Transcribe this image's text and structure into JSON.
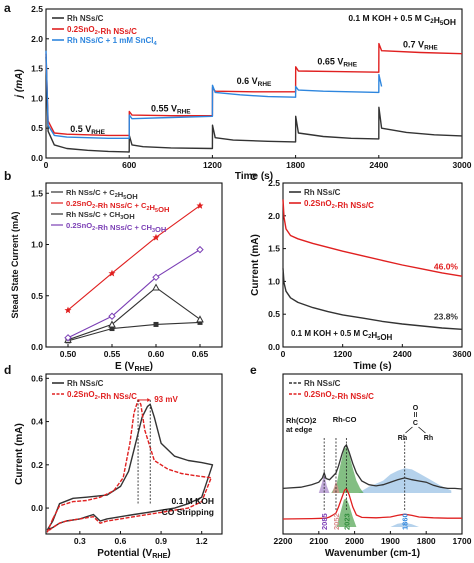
{
  "figure": {
    "panels": [
      "a",
      "b",
      "c",
      "d",
      "e"
    ]
  },
  "colors": {
    "black": "#333333",
    "red": "#e02020",
    "blue": "#2e86de",
    "purple": "#7b3fb5",
    "green": "#2e8b3a",
    "fill_blue": "#9cc3e6",
    "fill_green": "#5aa85a",
    "fill_purple": "#a98bc9",
    "pink": "#d98c8c"
  },
  "chart_data": [
    {
      "panel": "a",
      "type": "line",
      "xlabel": "Time (s)",
      "ylabel": "j (mA)",
      "xlim": [
        0,
        3000
      ],
      "ylim": [
        0,
        2.5
      ],
      "xticks": [
        0,
        600,
        1200,
        1800,
        2400,
        3000
      ],
      "yticks": [
        0.0,
        0.5,
        1.0,
        1.5,
        2.0,
        2.5
      ],
      "ytick_labels": [
        "0.0",
        "0.5",
        "1.0",
        "1.5",
        "2.0",
        "2.5"
      ],
      "annotation": "0.1 M KOH + 0.5 M C2H5OH",
      "potential_labels": [
        {
          "text": "0.5 VRHE",
          "x": 300,
          "y": 0.44
        },
        {
          "text": "0.55 VRHE",
          "x": 900,
          "y": 0.78
        },
        {
          "text": "0.6 VRHE",
          "x": 1500,
          "y": 1.24
        },
        {
          "text": "0.65 VRHE",
          "x": 2100,
          "y": 1.57
        },
        {
          "text": "0.7 VRHE",
          "x": 2700,
          "y": 1.85
        }
      ],
      "legend": [
        "Rh NSs/C",
        "0.2SnO2-Rh NSs/C",
        "Rh NSs/C + 1 mM SnCl4"
      ],
      "series": [
        {
          "name": "Rh NSs/C",
          "color_key": "black",
          "x": [
            0,
            15,
            60,
            150,
            300,
            450,
            600,
            601,
            620,
            700,
            900,
            1200,
            1201,
            1220,
            1350,
            1600,
            1800,
            1801,
            1820,
            2000,
            2200,
            2400,
            2401,
            2420,
            2600,
            2800,
            3000
          ],
          "y": [
            1.7,
            0.45,
            0.22,
            0.16,
            0.13,
            0.11,
            0.1,
            0.38,
            0.22,
            0.19,
            0.17,
            0.16,
            0.55,
            0.34,
            0.3,
            0.28,
            0.27,
            0.7,
            0.42,
            0.36,
            0.33,
            0.32,
            0.85,
            0.5,
            0.43,
            0.39,
            0.37
          ]
        },
        {
          "name": "0.2SnO2-Rh NSs/C",
          "color_key": "red",
          "x": [
            0,
            15,
            60,
            150,
            300,
            450,
            600,
            601,
            620,
            900,
            1200,
            1201,
            1220,
            1500,
            1800,
            1801,
            1820,
            2100,
            2400,
            2401,
            2420,
            2700,
            3000
          ],
          "y": [
            1.75,
            0.62,
            0.42,
            0.4,
            0.39,
            0.38,
            0.38,
            0.78,
            0.72,
            0.71,
            0.71,
            1.18,
            1.12,
            1.11,
            1.11,
            1.53,
            1.46,
            1.45,
            1.44,
            1.92,
            1.8,
            1.77,
            1.75
          ]
        },
        {
          "name": "Rh NSs/C + 1 mM SnCl4",
          "color_key": "blue",
          "x": [
            0,
            15,
            60,
            150,
            300,
            450,
            600,
            601,
            620,
            900,
            1200,
            1201,
            1220,
            1400,
            1600,
            1800,
            1801,
            1820,
            2000,
            2200,
            2400,
            2401,
            2420
          ],
          "y": [
            1.8,
            0.55,
            0.38,
            0.35,
            0.34,
            0.33,
            0.33,
            0.72,
            0.66,
            0.68,
            0.7,
            1.22,
            1.1,
            1.06,
            1.03,
            1.02,
            1.2,
            1.14,
            1.12,
            1.11,
            1.1,
            1.4,
            1.2
          ]
        }
      ]
    },
    {
      "panel": "b",
      "type": "line",
      "xlabel": "E (VRHE)",
      "ylabel": "Stead State Current (mA)",
      "xlim": [
        0.475,
        0.675
      ],
      "ylim": [
        0,
        1.6
      ],
      "xticks": [
        0.5,
        0.55,
        0.6,
        0.65
      ],
      "xtick_labels": [
        "0.50",
        "0.55",
        "0.60",
        "0.65"
      ],
      "yticks": [
        0.0,
        0.5,
        1.0,
        1.5
      ],
      "ytick_labels": [
        "0.0",
        "0.5",
        "1.0",
        "1.5"
      ],
      "legend": [
        "Rh NSs/C + C2H5OH",
        "0.2SnO2-Rh NSs/C + C2H5OH",
        "Rh NSs/C + CH3OH",
        "0.2SnO2-Rh NSs/C + CH3OH"
      ],
      "series": [
        {
          "name": "Rh NSs/C + C2H5OH",
          "color_key": "black",
          "marker": "square",
          "x": [
            0.5,
            0.55,
            0.6,
            0.65
          ],
          "y": [
            0.06,
            0.18,
            0.22,
            0.24
          ]
        },
        {
          "name": "0.2SnO2-Rh NSs/C + C2H5OH",
          "color_key": "red",
          "marker": "star",
          "x": [
            0.5,
            0.55,
            0.6,
            0.65
          ],
          "y": [
            0.36,
            0.72,
            1.07,
            1.38
          ]
        },
        {
          "name": "Rh NSs/C + CH3OH",
          "color_key": "black",
          "marker": "triangle",
          "x": [
            0.5,
            0.55,
            0.6,
            0.65
          ],
          "y": [
            0.07,
            0.22,
            0.58,
            0.27
          ]
        },
        {
          "name": "0.2SnO2-Rh NSs/C + CH3OH",
          "color_key": "purple",
          "marker": "diamond",
          "x": [
            0.5,
            0.55,
            0.6,
            0.65
          ],
          "y": [
            0.09,
            0.3,
            0.68,
            0.95
          ]
        }
      ]
    },
    {
      "panel": "c",
      "type": "line",
      "xlabel": "Time (s)",
      "ylabel": "Current (mA)",
      "xlim": [
        0,
        3600
      ],
      "ylim": [
        0,
        2.5
      ],
      "xticks": [
        0,
        1200,
        2400,
        3600
      ],
      "yticks": [
        0.0,
        0.5,
        1.0,
        1.5,
        2.0,
        2.5
      ],
      "ytick_labels": [
        "0.0",
        "0.5",
        "1.0",
        "1.5",
        "2.0",
        "2.5"
      ],
      "annotation": "0.1 M KOH + 0.5 M C2H5OH",
      "value_labels": [
        {
          "text": "46.0%",
          "x": 3300,
          "y": 1.12,
          "color_key": "red"
        },
        {
          "text": "23.8%",
          "x": 3300,
          "y": 0.37,
          "color_key": "black"
        }
      ],
      "legend": [
        "Rh NSs/C",
        "0.2SnO2-Rh NSs/C"
      ],
      "series": [
        {
          "name": "Rh NSs/C",
          "color_key": "black",
          "x": [
            0,
            20,
            60,
            150,
            300,
            600,
            900,
            1200,
            1600,
            2000,
            2400,
            2800,
            3200,
            3600
          ],
          "y": [
            1.2,
            0.98,
            0.85,
            0.75,
            0.68,
            0.6,
            0.54,
            0.49,
            0.44,
            0.39,
            0.35,
            0.32,
            0.29,
            0.27
          ]
        },
        {
          "name": "0.2SnO2-Rh NSs/C",
          "color_key": "red",
          "x": [
            0,
            20,
            60,
            150,
            300,
            600,
            900,
            1200,
            1600,
            2000,
            2400,
            2800,
            3200,
            3600
          ],
          "y": [
            2.25,
            1.98,
            1.8,
            1.7,
            1.65,
            1.58,
            1.52,
            1.46,
            1.39,
            1.32,
            1.25,
            1.19,
            1.13,
            1.08
          ]
        }
      ]
    },
    {
      "panel": "d",
      "type": "line",
      "xlabel": "Potential (VRHE)",
      "ylabel": "Current (mA)",
      "xlim": [
        0.05,
        1.35
      ],
      "ylim": [
        -0.12,
        0.62
      ],
      "xticks": [
        0.3,
        0.6,
        0.9,
        1.2
      ],
      "yticks": [
        0.0,
        0.2,
        0.4,
        0.6
      ],
      "ytick_labels": [
        "0.0",
        "0.2",
        "0.4",
        "0.6"
      ],
      "annotation_lines": [
        "0.1 M KOH",
        "CO Stripping"
      ],
      "peak_label": "93 mV",
      "peaks": [
        0.73,
        0.82
      ],
      "legend": [
        "Rh NSs/C",
        "0.2SnO2-Rh NSs/C"
      ],
      "series": [
        {
          "name": "Rh NSs/C",
          "color_key": "black",
          "x": [
            0.1,
            0.15,
            0.25,
            0.35,
            0.5,
            0.6,
            0.66,
            0.72,
            0.76,
            0.8,
            0.82,
            0.85,
            0.9,
            1.0,
            1.1,
            1.2,
            1.28,
            1.2,
            1.1,
            1.0,
            0.9,
            0.8,
            0.7,
            0.6,
            0.5,
            0.45,
            0.4,
            0.3,
            0.2,
            0.15,
            0.1,
            0.06,
            0.1
          ],
          "y": [
            -0.06,
            0.02,
            0.045,
            0.05,
            0.06,
            0.1,
            0.17,
            0.32,
            0.42,
            0.47,
            0.48,
            0.42,
            0.3,
            0.24,
            0.22,
            0.21,
            0.2,
            0.05,
            0.02,
            0.0,
            -0.01,
            -0.02,
            -0.03,
            -0.04,
            -0.05,
            -0.06,
            -0.03,
            -0.05,
            -0.06,
            -0.07,
            -0.09,
            -0.1,
            -0.06
          ]
        },
        {
          "name": "0.2SnO2-Rh NSs/C",
          "color_key": "red",
          "x": [
            0.1,
            0.15,
            0.25,
            0.35,
            0.45,
            0.55,
            0.62,
            0.67,
            0.7,
            0.73,
            0.75,
            0.78,
            0.85,
            0.95,
            1.05,
            1.15,
            1.27,
            1.2,
            1.1,
            1.0,
            0.9,
            0.8,
            0.7,
            0.6,
            0.5,
            0.45,
            0.4,
            0.3,
            0.2,
            0.15,
            0.1,
            0.06,
            0.1
          ],
          "y": [
            -0.05,
            0.01,
            0.03,
            0.035,
            0.05,
            0.08,
            0.14,
            0.3,
            0.44,
            0.5,
            0.48,
            0.36,
            0.22,
            0.18,
            0.16,
            0.15,
            0.14,
            0.03,
            0.0,
            -0.01,
            -0.02,
            -0.03,
            -0.04,
            -0.05,
            -0.06,
            -0.07,
            -0.04,
            -0.05,
            -0.06,
            -0.07,
            -0.09,
            -0.11,
            -0.05
          ]
        }
      ]
    },
    {
      "panel": "e",
      "type": "line",
      "xlabel": "Wavenumber (cm-1)",
      "ylabel": "",
      "xlim": [
        2200,
        1700
      ],
      "xticks": [
        2200,
        2100,
        2000,
        1900,
        1800,
        1700
      ],
      "peak_markers": [
        {
          "text": "2085",
          "x": 2085,
          "color_key": "purple"
        },
        {
          "text": "2052",
          "x": 2052,
          "color_key": "pink"
        },
        {
          "text": "2023",
          "x": 2023,
          "color_key": "green"
        },
        {
          "text": "1860",
          "x": 1860,
          "color_key": "blue"
        }
      ],
      "annotations": [
        "Rh(CO)2",
        "at edge",
        "Rh-CO"
      ],
      "bridge_labels": [
        "O",
        "C",
        "Rh",
        "Rh"
      ],
      "legend": [
        "Rh NSs/C",
        "0.2SnO2-Rh NSs/C"
      ],
      "series": [
        {
          "name": "Rh NSs/C",
          "color_key": "black",
          "x": [
            2200,
            2150,
            2120,
            2100,
            2090,
            2085,
            2080,
            2070,
            2060,
            2052,
            2045,
            2035,
            2028,
            2023,
            2015,
            2005,
            1995,
            1980,
            1960,
            1940,
            1920,
            1900,
            1880,
            1860,
            1840,
            1820,
            1800,
            1780,
            1760,
            1740,
            1720,
            1700
          ],
          "y": [
            0.3,
            0.32,
            0.36,
            0.4,
            0.47,
            0.55,
            0.46,
            0.44,
            0.5,
            0.55,
            0.66,
            0.86,
            0.97,
            1.0,
            0.88,
            0.7,
            0.55,
            0.42,
            0.36,
            0.34,
            0.36,
            0.4,
            0.44,
            0.47,
            0.44,
            0.42,
            0.4,
            0.35,
            0.32,
            0.3,
            0.3,
            0.29
          ]
        },
        {
          "name": "0.2SnO2-Rh NSs/C",
          "color_key": "red",
          "x": [
            2200,
            2120,
            2080,
            2070,
            2060,
            2052,
            2045,
            2035,
            2028,
            2023,
            2015,
            2005,
            1995,
            1980,
            1940,
            1900,
            1880,
            1860,
            1840,
            1820,
            1780,
            1740,
            1700
          ],
          "y": [
            0.0,
            0.01,
            0.02,
            0.05,
            0.1,
            0.15,
            0.3,
            0.55,
            0.72,
            0.76,
            0.6,
            0.3,
            0.1,
            0.04,
            0.03,
            0.05,
            0.09,
            0.12,
            0.09,
            0.05,
            0.03,
            0.02,
            0.02
          ]
        }
      ]
    }
  ]
}
